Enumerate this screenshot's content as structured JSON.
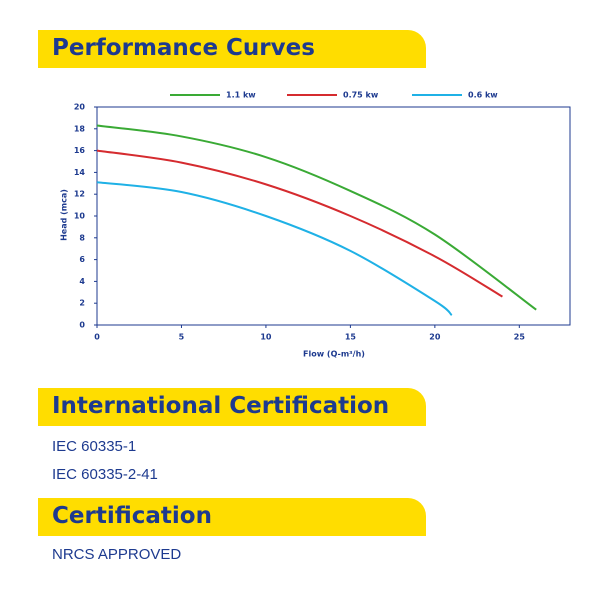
{
  "sections": [
    {
      "title": "Performance Curves"
    },
    {
      "title": "International Certification",
      "items": [
        "IEC 60335-1",
        "IEC 60335-2-41"
      ]
    },
    {
      "title": "Certification",
      "items": [
        "NRCS APPROVED"
      ]
    }
  ],
  "chart_data": {
    "type": "line",
    "x_label": "Flow (Q-m³/h)",
    "y_label": "Head (mca)",
    "xlim": [
      0,
      28
    ],
    "xticks": [
      0,
      5,
      10,
      15,
      20,
      25
    ],
    "ylim": [
      0,
      20
    ],
    "yticks": [
      0,
      2,
      4,
      6,
      8,
      10,
      12,
      14,
      16,
      18,
      20
    ],
    "series": [
      {
        "name": "1.1 kw",
        "color": "#3aaa35",
        "x": [
          0,
          5,
          10,
          15,
          20,
          26
        ],
        "values": [
          18.3,
          17.3,
          15.4,
          12.3,
          8.3,
          1.4
        ]
      },
      {
        "name": "0.75 kw",
        "color": "#d52b2f",
        "x": [
          0,
          5,
          10,
          15,
          20,
          24
        ],
        "values": [
          16,
          14.9,
          12.9,
          10.0,
          6.3,
          2.6
        ]
      },
      {
        "name": "0.6 kw",
        "color": "#1fb1e6",
        "x": [
          0,
          5,
          10,
          15,
          20,
          21
        ],
        "values": [
          13.1,
          12.2,
          10.0,
          6.8,
          2.2,
          0.9
        ]
      }
    ]
  }
}
